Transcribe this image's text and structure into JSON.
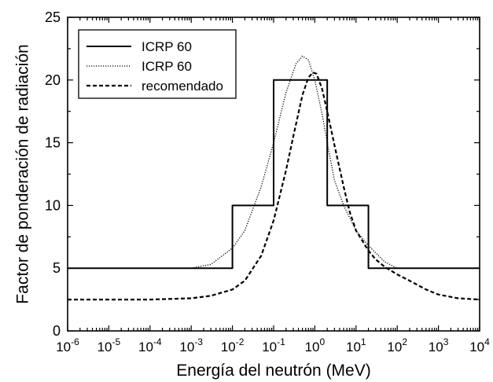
{
  "chart_data": {
    "type": "line",
    "xscale": "log",
    "xlabel": "Energía del neutrón (MeV)",
    "ylabel": "Factor de ponderación de radiación",
    "xlim": [
      1e-06,
      10000.0
    ],
    "ylim": [
      0,
      25
    ],
    "x_ticks": [
      {
        "value": 1e-06,
        "base": "10",
        "exp": "-6"
      },
      {
        "value": 1e-05,
        "base": "10",
        "exp": "-5"
      },
      {
        "value": 0.0001,
        "base": "10",
        "exp": "-4"
      },
      {
        "value": 0.001,
        "base": "10",
        "exp": "-3"
      },
      {
        "value": 0.01,
        "base": "10",
        "exp": "-2"
      },
      {
        "value": 0.1,
        "base": "10",
        "exp": "-1"
      },
      {
        "value": 1,
        "base": "10",
        "exp": "0"
      },
      {
        "value": 10,
        "base": "10",
        "exp": "1"
      },
      {
        "value": 100,
        "base": "10",
        "exp": "2"
      },
      {
        "value": 1000,
        "base": "10",
        "exp": "3"
      },
      {
        "value": 10000,
        "base": "10",
        "exp": "4"
      }
    ],
    "y_ticks": [
      "0",
      "5",
      "10",
      "15",
      "20",
      "25"
    ],
    "grid": false,
    "legend_position": "top-left",
    "series": [
      {
        "name": "ICRP 60",
        "style": "solid",
        "x": [
          1e-06,
          0.01,
          0.01,
          0.1,
          0.1,
          2,
          2,
          20,
          20,
          10000
        ],
        "y": [
          5,
          5,
          10,
          10,
          20,
          20,
          10,
          10,
          5,
          5
        ]
      },
      {
        "name": "ICRP 60",
        "style": "dotted",
        "x": [
          0.001,
          0.003,
          0.01,
          0.02,
          0.05,
          0.1,
          0.2,
          0.35,
          0.5,
          0.7,
          1,
          1.5,
          2,
          3,
          5,
          10,
          20,
          50,
          100
        ],
        "y": [
          5.0,
          5.3,
          6.6,
          8.0,
          11.5,
          15.0,
          19.0,
          21.3,
          21.9,
          21.6,
          20.0,
          17.3,
          15.0,
          12.0,
          10.0,
          8.0,
          6.8,
          5.5,
          5.0
        ]
      },
      {
        "name": "recomendado",
        "style": "dashed",
        "x": [
          1e-06,
          0.0001,
          0.001,
          0.003,
          0.01,
          0.02,
          0.05,
          0.1,
          0.2,
          0.3,
          0.5,
          0.7,
          0.9,
          1.1,
          1.5,
          2,
          3,
          5,
          7,
          10,
          20,
          30,
          50,
          100,
          200,
          500,
          1000,
          3000,
          10000
        ],
        "y": [
          2.5,
          2.5,
          2.6,
          2.8,
          3.3,
          4.0,
          6.0,
          8.8,
          12.8,
          15.5,
          18.8,
          20.2,
          20.6,
          20.5,
          19.3,
          17.5,
          14.8,
          11.5,
          9.5,
          8.0,
          6.4,
          5.7,
          5.1,
          4.5,
          4.0,
          3.3,
          2.9,
          2.6,
          2.5
        ]
      }
    ]
  }
}
